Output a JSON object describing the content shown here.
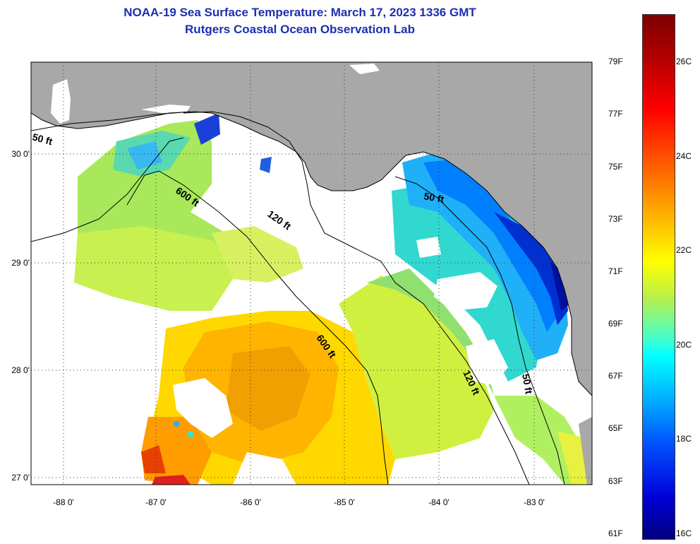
{
  "header": {
    "title": "NOAA-19 Sea Surface Temperature:  March 17, 2023 1336 GMT",
    "subtitle": "Rutgers Coastal Ocean Observation Lab"
  },
  "axes": {
    "latitude_labels": [
      "30 0'",
      "29 0'",
      "28 0'",
      "27 0'"
    ],
    "longitude_labels": [
      "-88 0'",
      "-87 0'",
      "-86 0'",
      "-85 0'",
      "-84 0'",
      "-83 0'"
    ]
  },
  "contours": {
    "labels": [
      "50 ft",
      "600 ft",
      "120 ft",
      "50 ft",
      "600 ft",
      "120 ft",
      "50 ft"
    ]
  },
  "colorbar": {
    "fahrenheit_labels": [
      "79F",
      "77F",
      "75F",
      "73F",
      "71F",
      "69F",
      "67F",
      "65F",
      "63F",
      "61F"
    ],
    "celsius_labels": [
      "26C",
      "24C",
      "22C",
      "20C",
      "18C",
      "16C"
    ]
  },
  "colors": {
    "land": "#a8a8a8",
    "cloud_no_data": "#ffffff",
    "title": "#1c2fb0"
  }
}
